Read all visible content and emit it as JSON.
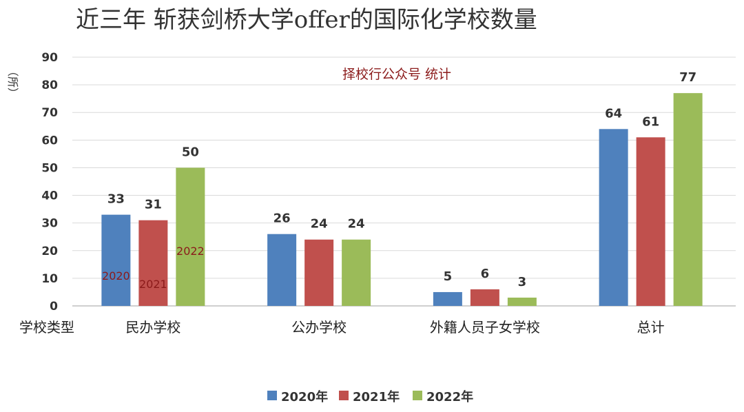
{
  "chart_data": {
    "type": "bar",
    "title": "近三年 斩获剑桥大学offer的国际化学校数量",
    "ylabel": "（所）",
    "xlabel": "学校类型",
    "ylim": [
      0,
      90
    ],
    "yticks": [
      "0",
      "10",
      "20",
      "30",
      "40",
      "50",
      "60",
      "70",
      "80",
      "90"
    ],
    "grid": true,
    "legend_position": "bottom",
    "categories": [
      "民办学校",
      "公办学校",
      "外籍人员子女学校",
      "总计"
    ],
    "series": [
      {
        "name": "2020年",
        "color": "#4F81BD",
        "values": [
          33,
          26,
          5,
          64
        ]
      },
      {
        "name": "2021年",
        "color": "#C0504D",
        "values": [
          31,
          24,
          6,
          61
        ]
      },
      {
        "name": "2022年",
        "color": "#9BBB59",
        "values": [
          50,
          24,
          3,
          77
        ]
      }
    ],
    "annotation": "择校行公众号 统计",
    "in_bar_labels": [
      "2020",
      "2021",
      "2022"
    ]
  }
}
